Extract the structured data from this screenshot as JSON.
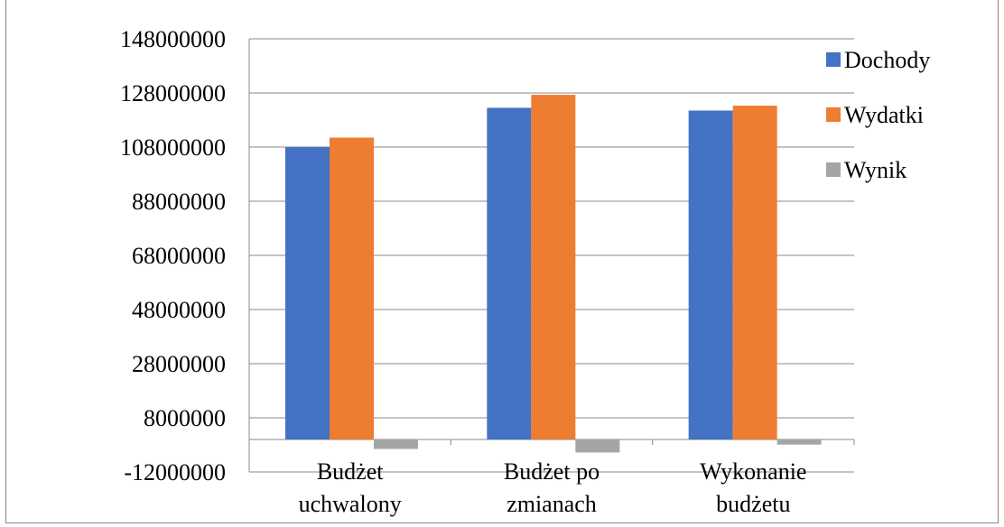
{
  "chart_data": {
    "type": "bar",
    "title": "",
    "xlabel": "",
    "ylabel": "",
    "categories": [
      [
        "Budżet",
        "uchwalony"
      ],
      [
        "Budżet po",
        "zmianach"
      ],
      [
        "Wykonanie",
        "budżetu"
      ]
    ],
    "series": [
      {
        "name": "Dochody",
        "color": "#4472C4",
        "values": [
          108000000,
          122500000,
          121500000
        ]
      },
      {
        "name": "Wydatki",
        "color": "#ED7D31",
        "values": [
          111500000,
          127300000,
          123300000
        ]
      },
      {
        "name": "Wynik",
        "color": "#A5A5A5",
        "values": [
          -3500000,
          -4800000,
          -1900000
        ]
      }
    ],
    "ylim": [
      -12000000,
      148000000
    ],
    "yticks": [
      "148000000",
      "128000000",
      "108000000",
      "88000000",
      "68000000",
      "48000000",
      "28000000",
      "8000000",
      "-12000000"
    ],
    "ytick_values": [
      148000000,
      128000000,
      108000000,
      88000000,
      68000000,
      48000000,
      28000000,
      8000000,
      -12000000
    ],
    "grid": true,
    "legend_position": "right"
  }
}
